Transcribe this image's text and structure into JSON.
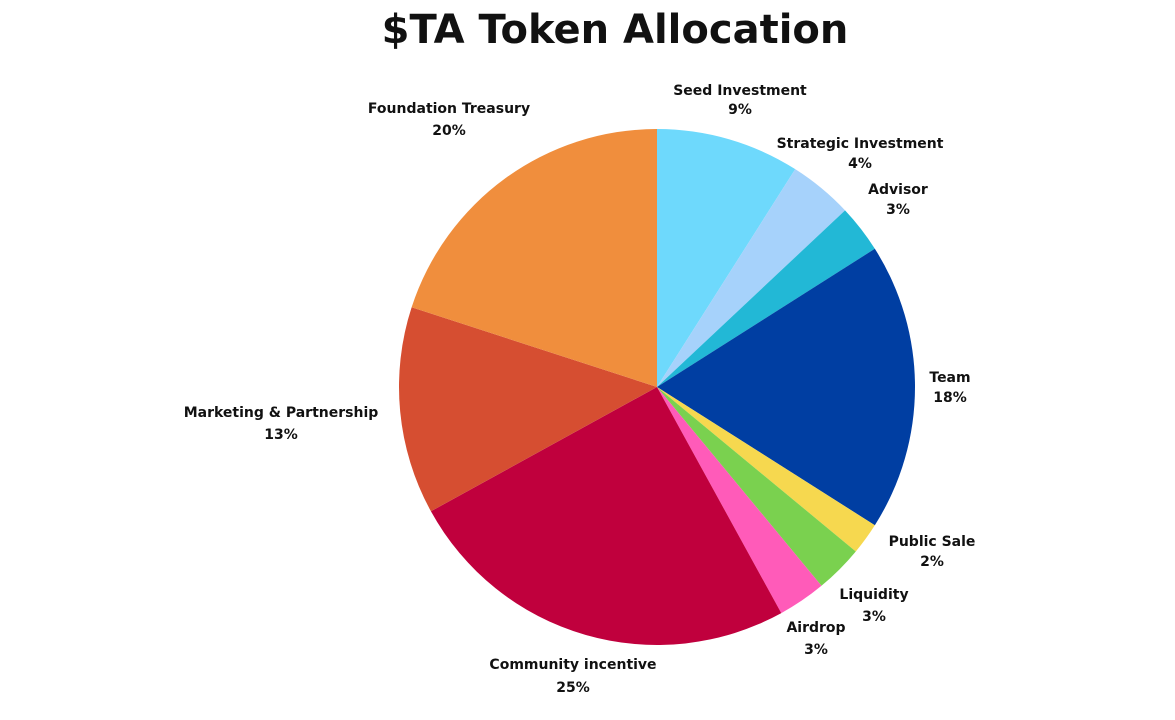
{
  "chart_data": {
    "type": "pie",
    "title": "$TA Token Allocation",
    "categories": [
      "Seed Investment",
      "Strategic Investment",
      "Advisor",
      "Team",
      "Public Sale",
      "Liquidity",
      "Airdrop",
      "Community incentive",
      "Marketing & Partnership",
      "Foundation Treasury"
    ],
    "values": [
      9,
      4,
      3,
      18,
      2,
      3,
      3,
      25,
      13,
      20
    ],
    "value_labels": [
      "9%",
      "4%",
      "3%",
      "18%",
      "2%",
      "3%",
      "3%",
      "25%",
      "13%",
      "20%"
    ],
    "colors": [
      "#6ed9fc",
      "#a6d2fb",
      "#22b8d6",
      "#003ea2",
      "#f6d84f",
      "#7ad14f",
      "#ff5bb9",
      "#c0003d",
      "#d64e31",
      "#f08e3d"
    ]
  }
}
